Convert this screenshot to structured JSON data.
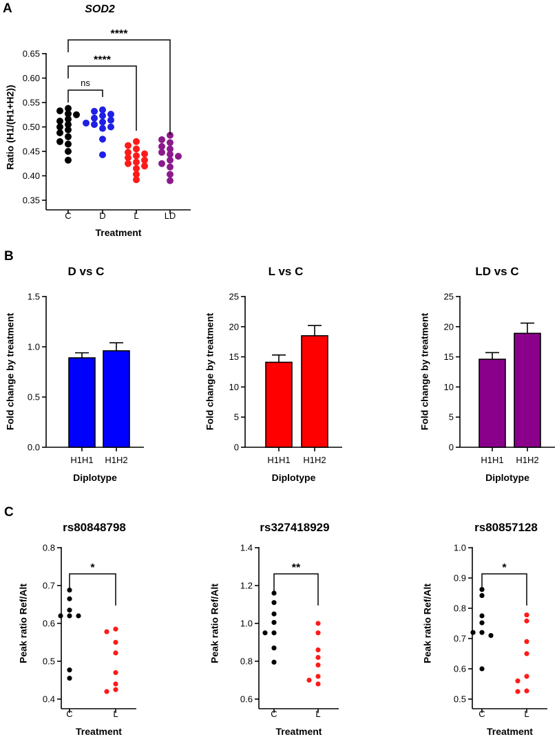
{
  "panels": {
    "A": "A",
    "B": "B",
    "C": "C"
  },
  "chart_data": [
    {
      "id": "A",
      "type": "scatter",
      "title": "SOD2",
      "xlabel": "Treatment",
      "ylabel": "Ratio (H1/(H1+H2))",
      "ylim": [
        0.35,
        0.65
      ],
      "yticks": [
        "0.35",
        "0.40",
        "0.45",
        "0.50",
        "0.55",
        "0.60",
        "0.65"
      ],
      "categories": [
        "C",
        "D",
        "L",
        "LD"
      ],
      "colors": [
        "#000000",
        "#1f1fe6",
        "#ff1a1a",
        "#8b1a8b"
      ],
      "series": [
        {
          "name": "C",
          "values": [
            0.538,
            0.533,
            0.527,
            0.525,
            0.516,
            0.512,
            0.505,
            0.5,
            0.494,
            0.488,
            0.48,
            0.47,
            0.465,
            0.45,
            0.432
          ]
        },
        {
          "name": "D",
          "values": [
            0.535,
            0.532,
            0.526,
            0.523,
            0.518,
            0.514,
            0.51,
            0.508,
            0.505,
            0.5,
            0.497,
            0.475,
            0.443
          ]
        },
        {
          "name": "L",
          "values": [
            0.47,
            0.462,
            0.455,
            0.448,
            0.445,
            0.441,
            0.437,
            0.432,
            0.428,
            0.425,
            0.42,
            0.415,
            0.403,
            0.392
          ]
        },
        {
          "name": "LD",
          "values": [
            0.483,
            0.474,
            0.468,
            0.46,
            0.455,
            0.448,
            0.444,
            0.44,
            0.432,
            0.425,
            0.418,
            0.403,
            0.39
          ]
        }
      ],
      "comparisons": [
        {
          "from": "C",
          "to": "D",
          "label": "ns"
        },
        {
          "from": "C",
          "to": "L",
          "label": "****"
        },
        {
          "from": "C",
          "to": "LD",
          "label": "****"
        }
      ]
    },
    {
      "id": "B1",
      "type": "bar",
      "title": "D vs C",
      "xlabel": "Diplotype",
      "ylabel": "Fold change by treatment",
      "ylim": [
        0,
        1.5
      ],
      "yticks": [
        "0.0",
        "0.5",
        "1.0",
        "1.5"
      ],
      "categories": [
        "H1H1",
        "H1H2"
      ],
      "values": [
        0.89,
        0.96
      ],
      "errors": [
        0.05,
        0.08
      ],
      "color": "#0000ff"
    },
    {
      "id": "B2",
      "type": "bar",
      "title": "L vs C",
      "xlabel": "Diplotype",
      "ylabel": "Fold change by treatment",
      "ylim": [
        0,
        25
      ],
      "yticks": [
        "0",
        "5",
        "10",
        "15",
        "20",
        "25"
      ],
      "categories": [
        "H1H1",
        "H1H2"
      ],
      "values": [
        14.1,
        18.5
      ],
      "errors": [
        1.2,
        1.7
      ],
      "color": "#ff0000"
    },
    {
      "id": "B3",
      "type": "bar",
      "title": "LD vs C",
      "xlabel": "Diplotype",
      "ylabel": "Fold change by treatment",
      "ylim": [
        0,
        25
      ],
      "yticks": [
        "0",
        "5",
        "10",
        "15",
        "20",
        "25"
      ],
      "categories": [
        "H1H1",
        "H1H2"
      ],
      "values": [
        14.6,
        18.9
      ],
      "errors": [
        1.1,
        1.7
      ],
      "color": "#8b008b"
    },
    {
      "id": "C1",
      "type": "scatter",
      "title": "rs80848798",
      "xlabel": "Treatment",
      "ylabel": "Peak ratio Ref/Alt",
      "ylim": [
        0.4,
        0.8
      ],
      "yticks": [
        "0.4",
        "0.5",
        "0.6",
        "0.7",
        "0.8"
      ],
      "categories": [
        "C",
        "L"
      ],
      "colors": [
        "#000000",
        "#ff1a1a"
      ],
      "series": [
        {
          "name": "C",
          "values": [
            0.688,
            0.665,
            0.635,
            0.62,
            0.62,
            0.62,
            0.477,
            0.455
          ]
        },
        {
          "name": "L",
          "values": [
            0.585,
            0.578,
            0.55,
            0.522,
            0.47,
            0.44,
            0.425,
            0.42
          ]
        }
      ],
      "comparisons": [
        {
          "from": "C",
          "to": "L",
          "label": "*"
        }
      ]
    },
    {
      "id": "C2",
      "type": "scatter",
      "title": "rs327418929",
      "xlabel": "Treatment",
      "ylabel": "Peak ratio Ref/Alt",
      "ylim": [
        0.6,
        1.4
      ],
      "yticks": [
        "0.6",
        "0.8",
        "1.0",
        "1.2",
        "1.4"
      ],
      "categories": [
        "C",
        "L"
      ],
      "colors": [
        "#000000",
        "#ff1a1a"
      ],
      "series": [
        {
          "name": "C",
          "values": [
            1.16,
            1.11,
            1.05,
            1.005,
            0.95,
            0.95,
            0.87,
            0.795
          ]
        },
        {
          "name": "L",
          "values": [
            1.0,
            0.95,
            0.86,
            0.82,
            0.78,
            0.72,
            0.7,
            0.68
          ]
        }
      ],
      "comparisons": [
        {
          "from": "C",
          "to": "L",
          "label": "**"
        }
      ]
    },
    {
      "id": "C3",
      "type": "scatter",
      "title": "rs80857128",
      "xlabel": "Treatment",
      "ylabel": "Peak ratio Ref/Alt",
      "ylim": [
        0.5,
        1.0
      ],
      "yticks": [
        "0.5",
        "0.6",
        "0.7",
        "0.8",
        "0.9",
        "1.0"
      ],
      "categories": [
        "C",
        "L"
      ],
      "colors": [
        "#000000",
        "#ff1a1a"
      ],
      "series": [
        {
          "name": "C",
          "values": [
            0.862,
            0.842,
            0.775,
            0.752,
            0.72,
            0.72,
            0.71,
            0.6
          ]
        },
        {
          "name": "L",
          "values": [
            0.778,
            0.758,
            0.69,
            0.65,
            0.575,
            0.56,
            0.527,
            0.525
          ]
        }
      ],
      "comparisons": [
        {
          "from": "C",
          "to": "L",
          "label": "*"
        }
      ]
    }
  ]
}
